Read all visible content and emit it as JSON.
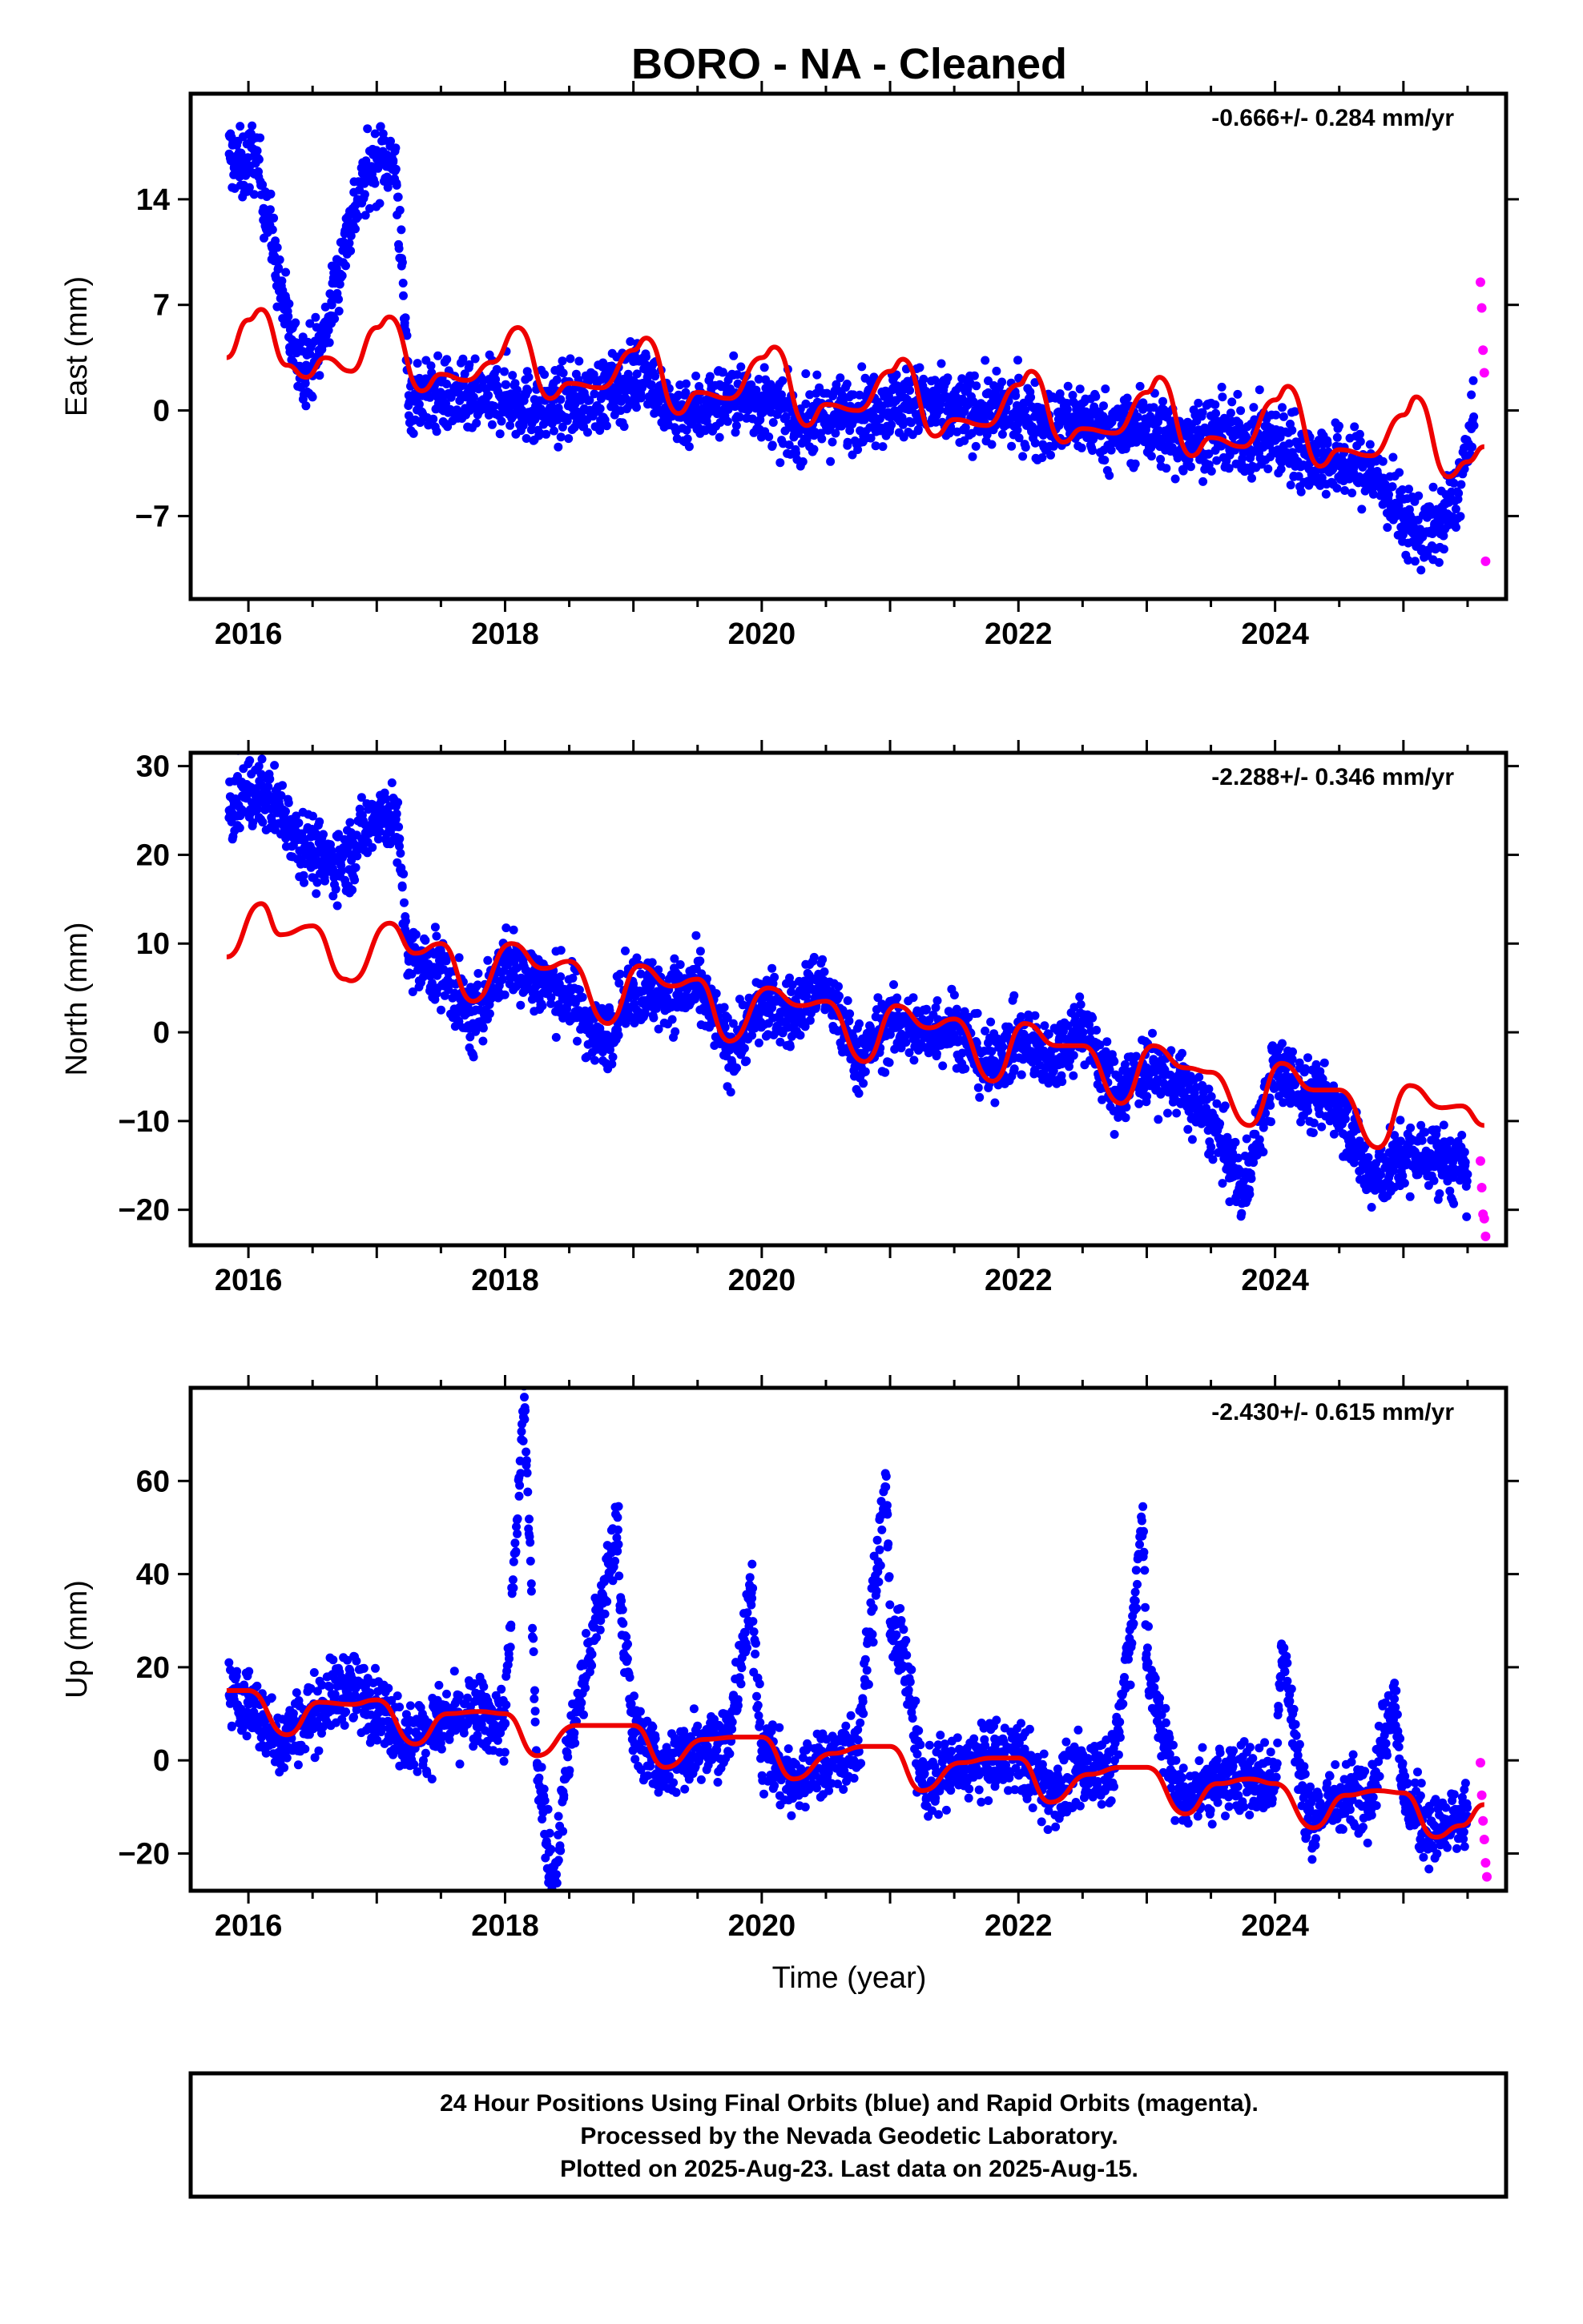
{
  "figure": {
    "title": "BORO  - NA - Cleaned",
    "xlabel": "Time (year)",
    "footer_lines": [
      "24 Hour Positions Using Final Orbits (blue) and Rapid Orbits (magenta).",
      "Processed by the Nevada Geodetic Laboratory.",
      "Plotted on 2025-Aug-23. Last data on 2025-Aug-15."
    ]
  },
  "colors": {
    "final_orbits": "#0000ff",
    "rapid_orbits": "#ff00ff",
    "model_fit": "#ee0000",
    "frame": "#000000"
  },
  "chart_data": [
    {
      "type": "scatter",
      "panel": "east",
      "ylabel": "East (mm)",
      "rate_label": "-0.666+/- 0.284 mm/yr",
      "xlim": [
        2015.55,
        2025.8
      ],
      "ylim": [
        -12.5,
        21
      ],
      "xticks": [
        2016,
        2018,
        2020,
        2022,
        2024
      ],
      "xtick_labels": [
        "2016",
        "2018",
        "2020",
        "2022",
        "2024"
      ],
      "yticks": [
        -7,
        0,
        7,
        14
      ],
      "ytick_labels": [
        "−7",
        "0",
        "7",
        "14"
      ],
      "series": [
        {
          "role": "final_orbits",
          "x": [
            2015.85,
            2015.95,
            2016.05,
            2016.15,
            2016.25,
            2016.35,
            2016.45,
            2016.55,
            2016.65,
            2016.75,
            2016.85,
            2016.95,
            2017.05,
            2017.15,
            2017.25,
            2017.5,
            2017.75,
            2018.0,
            2018.25,
            2018.5,
            2018.75,
            2019.0,
            2019.1,
            2019.25,
            2019.5,
            2019.75,
            2020.0,
            2020.25,
            2020.5,
            2020.75,
            2021.0,
            2021.25,
            2021.5,
            2021.75,
            2022.0,
            2022.25,
            2022.5,
            2022.75,
            2023.0,
            2023.25,
            2023.5,
            2023.75,
            2024.0,
            2024.25,
            2024.5,
            2024.75,
            2025.0,
            2025.1,
            2025.25,
            2025.4,
            2025.55
          ],
          "y": [
            17,
            16,
            17,
            13,
            8,
            4,
            3,
            4,
            7,
            11,
            14,
            16,
            17,
            16,
            1,
            1,
            0.5,
            1,
            0,
            0.5,
            1,
            2,
            3,
            0,
            0,
            1,
            0.5,
            -1,
            -0.5,
            0,
            0.5,
            0.5,
            0,
            0,
            0,
            -1,
            -0.5,
            -1.5,
            -1,
            -2,
            -1.5,
            -2,
            -2,
            -3,
            -3.5,
            -4,
            -7,
            -8,
            -8,
            -6,
            -1
          ]
        },
        {
          "role": "rapid_orbits",
          "x": [
            2025.6,
            2025.61,
            2025.62,
            2025.63,
            2025.64
          ],
          "y": [
            8.5,
            6.8,
            4,
            2.5,
            -10
          ]
        },
        {
          "role": "model_fit",
          "x": [
            2015.83,
            2016.0,
            2016.1,
            2016.3,
            2016.45,
            2016.6,
            2016.8,
            2017.0,
            2017.1,
            2017.35,
            2017.5,
            2017.7,
            2017.9,
            2018.1,
            2018.35,
            2018.5,
            2018.75,
            2019.0,
            2019.1,
            2019.35,
            2019.5,
            2019.75,
            2020.0,
            2020.1,
            2020.35,
            2020.5,
            2020.75,
            2021.0,
            2021.1,
            2021.35,
            2021.5,
            2021.75,
            2022.0,
            2022.1,
            2022.35,
            2022.5,
            2022.75,
            2023.0,
            2023.1,
            2023.35,
            2023.5,
            2023.75,
            2024.0,
            2024.1,
            2024.35,
            2024.5,
            2024.75,
            2025.0,
            2025.1,
            2025.35,
            2025.5,
            2025.63
          ],
          "y": [
            3.5,
            6,
            6.7,
            3,
            2.2,
            3.5,
            2.6,
            5.5,
            6.2,
            1.3,
            2.4,
            2,
            3.2,
            5.5,
            0.8,
            1.8,
            1.5,
            4,
            4.8,
            -0.2,
            1.2,
            0.8,
            3.5,
            4.2,
            -1,
            0.4,
            0,
            2.6,
            3.4,
            -1.7,
            -0.6,
            -1,
            1.7,
            2.6,
            -2.1,
            -1.2,
            -1.5,
            1.2,
            2.2,
            -3,
            -1.8,
            -2.4,
            0.7,
            1.6,
            -3.7,
            -2.6,
            -3,
            -0.3,
            0.9,
            -4.4,
            -3.4,
            -2.4
          ]
        }
      ]
    },
    {
      "type": "scatter",
      "panel": "north",
      "ylabel": "North (mm)",
      "rate_label": "-2.288+/- 0.346 mm/yr",
      "xlim": [
        2015.55,
        2025.8
      ],
      "ylim": [
        -24,
        31.5
      ],
      "xticks": [
        2016,
        2018,
        2020,
        2022,
        2024
      ],
      "xtick_labels": [
        "2016",
        "2018",
        "2020",
        "2022",
        "2024"
      ],
      "yticks": [
        -20,
        -10,
        0,
        10,
        20,
        30
      ],
      "ytick_labels": [
        "−20",
        "−10",
        "0",
        "10",
        "20",
        "30"
      ],
      "series": [
        {
          "role": "final_orbits",
          "x": [
            2015.85,
            2016.0,
            2016.2,
            2016.4,
            2016.6,
            2016.8,
            2017.0,
            2017.15,
            2017.25,
            2017.5,
            2017.75,
            2018.0,
            2018.25,
            2018.5,
            2018.75,
            2019.0,
            2019.25,
            2019.5,
            2019.75,
            2020.0,
            2020.25,
            2020.45,
            2020.75,
            2021.0,
            2021.25,
            2021.5,
            2021.75,
            2022.0,
            2022.25,
            2022.5,
            2022.75,
            2023.0,
            2023.25,
            2023.5,
            2023.75,
            2024.0,
            2024.25,
            2024.5,
            2024.75,
            2025.0,
            2025.25,
            2025.5
          ],
          "y": [
            25,
            27,
            26,
            22,
            19,
            20,
            25,
            24,
            8,
            7,
            1,
            8,
            6,
            4,
            -1,
            5,
            4,
            5,
            -2,
            3,
            2,
            6,
            -3,
            1,
            0,
            1,
            -4,
            -1,
            -3,
            1,
            -7,
            -4,
            -6,
            -10,
            -18,
            -4,
            -7,
            -8,
            -17,
            -14,
            -14,
            -16
          ]
        },
        {
          "role": "rapid_orbits",
          "x": [
            2025.6,
            2025.61,
            2025.62,
            2025.63,
            2025.64
          ],
          "y": [
            -14.5,
            -17.5,
            -20.5,
            -21,
            -23
          ]
        },
        {
          "role": "model_fit",
          "x": [
            2015.83,
            2016.1,
            2016.25,
            2016.5,
            2016.75,
            2016.8,
            2017.1,
            2017.3,
            2017.5,
            2017.75,
            2018.05,
            2018.3,
            2018.5,
            2018.8,
            2019.05,
            2019.3,
            2019.5,
            2019.75,
            2020.05,
            2020.3,
            2020.5,
            2020.8,
            2021.05,
            2021.3,
            2021.5,
            2021.8,
            2022.05,
            2022.3,
            2022.5,
            2022.8,
            2023.05,
            2023.3,
            2023.5,
            2023.8,
            2024.05,
            2024.3,
            2024.5,
            2024.8,
            2025.05,
            2025.3,
            2025.45,
            2025.63
          ],
          "y": [
            8.5,
            14.5,
            11,
            12,
            6,
            5.8,
            12.3,
            8.9,
            10,
            3.5,
            10,
            7.2,
            8,
            1,
            7.5,
            5.2,
            6,
            -1,
            5,
            3,
            3.5,
            -3.3,
            3,
            0.5,
            1.5,
            -5.5,
            1,
            -1.5,
            -1.5,
            -8,
            -1.5,
            -4,
            -4.5,
            -10.5,
            -3.5,
            -6.5,
            -6.5,
            -13,
            -6,
            -8.5,
            -8.3,
            -10.5
          ]
        }
      ]
    },
    {
      "type": "scatter",
      "panel": "up",
      "ylabel": "Up (mm)",
      "rate_label": "-2.430+/- 0.615 mm/yr",
      "xlim": [
        2015.55,
        2025.8
      ],
      "ylim": [
        -28,
        80
      ],
      "xticks": [
        2016,
        2018,
        2020,
        2022,
        2024
      ],
      "xtick_labels": [
        "2016",
        "2018",
        "2020",
        "2022",
        "2024"
      ],
      "yticks": [
        -20,
        0,
        20,
        40,
        60
      ],
      "ytick_labels": [
        "−20",
        "0",
        "20",
        "40",
        "60"
      ],
      "series": [
        {
          "role": "final_orbits",
          "x": [
            2015.85,
            2016.0,
            2016.25,
            2016.5,
            2016.75,
            2017.0,
            2017.25,
            2017.5,
            2017.75,
            2018.0,
            2018.15,
            2018.25,
            2018.38,
            2018.5,
            2018.88,
            2018.9,
            2019.0,
            2019.25,
            2019.5,
            2019.75,
            2019.92,
            2020.0,
            2020.25,
            2020.5,
            2020.75,
            2020.97,
            2021.0,
            2021.1,
            2021.25,
            2021.5,
            2021.75,
            2022.0,
            2022.25,
            2022.5,
            2022.75,
            2022.9,
            2022.97,
            2023.0,
            2023.25,
            2023.5,
            2023.75,
            2024.0,
            2024.05,
            2024.25,
            2024.5,
            2024.75,
            2024.93,
            2025.0,
            2025.25,
            2025.5
          ],
          "y": [
            14,
            12,
            4,
            10,
            16,
            12,
            4,
            8,
            10,
            8,
            78,
            -1,
            -26,
            4,
            49.5,
            35,
            6,
            -2,
            4,
            5,
            36,
            2,
            -5,
            0,
            2,
            61,
            27,
            25,
            -5,
            -2,
            0,
            1,
            -7,
            -3,
            0,
            32.5,
            54.5,
            20,
            -8,
            -5,
            -3,
            -5,
            25,
            -13,
            -8,
            -6,
            15,
            -8,
            -16,
            -12
          ]
        },
        {
          "role": "rapid_orbits",
          "x": [
            2025.6,
            2025.61,
            2025.62,
            2025.63,
            2025.64,
            2025.65
          ],
          "y": [
            -0.5,
            -7.5,
            -13,
            -17,
            -22,
            -25
          ]
        },
        {
          "role": "model_fit",
          "x": [
            2015.83,
            2016.0,
            2016.3,
            2016.55,
            2016.8,
            2017.0,
            2017.3,
            2017.55,
            2017.8,
            2018.0,
            2018.25,
            2018.55,
            2018.8,
            2019.0,
            2019.25,
            2019.55,
            2019.8,
            2020.0,
            2020.25,
            2020.55,
            2020.8,
            2021.0,
            2021.25,
            2021.55,
            2021.8,
            2022.0,
            2022.25,
            2022.55,
            2022.8,
            2023.0,
            2023.3,
            2023.55,
            2023.8,
            2024.0,
            2024.3,
            2024.55,
            2024.8,
            2025.0,
            2025.25,
            2025.45,
            2025.63
          ],
          "y": [
            15,
            15,
            5.5,
            12.5,
            12,
            13,
            3.5,
            10,
            10.5,
            10,
            1,
            7.5,
            7.5,
            7.5,
            -1.5,
            4.5,
            5,
            5,
            -4,
            1.5,
            3,
            3,
            -6.5,
            -0.5,
            0.5,
            0.5,
            -9,
            -3,
            -1.5,
            -1.5,
            -11.5,
            -5,
            -4,
            -5,
            -14.5,
            -7.5,
            -6.5,
            -7,
            -16.5,
            -14,
            -9.5
          ]
        }
      ]
    }
  ]
}
